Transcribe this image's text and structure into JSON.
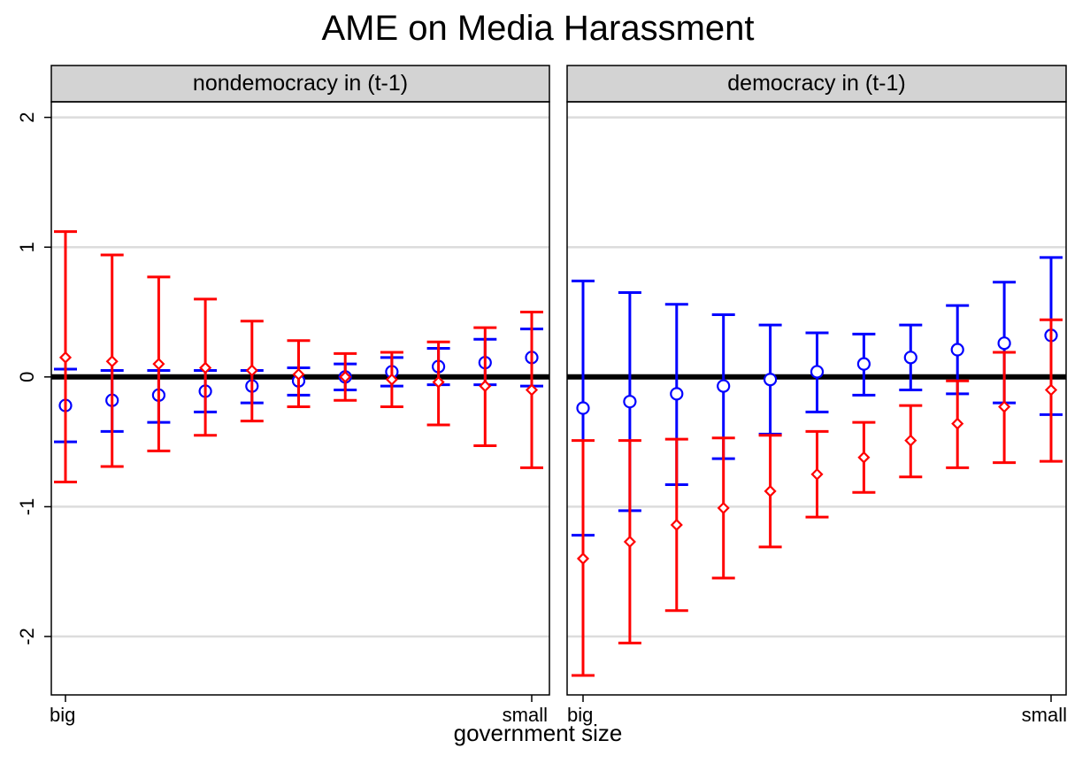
{
  "chart_data": {
    "type": "errorbar",
    "title": "AME on Media Harassment",
    "xlabel": "government size",
    "ylabel": "",
    "ylim": [
      -2.45,
      2.12
    ],
    "yticks": [
      -2,
      -1,
      0,
      1,
      2
    ],
    "ytick_labels": [
      "-2",
      "-1",
      "0",
      "1",
      "2"
    ],
    "x_tick_labels": [
      "big",
      "small"
    ],
    "reference_line": 0,
    "grid": "horizontal",
    "series_colors": {
      "blue": "#0000ff",
      "red": "#ff0000"
    },
    "panels": [
      {
        "label": "nondemocracy in (t-1)",
        "series": [
          {
            "marker": "circle",
            "color": "#0000ff",
            "estimate": [
              -0.22,
              -0.18,
              -0.14,
              -0.11,
              -0.07,
              -0.03,
              0.0,
              0.04,
              0.08,
              0.11,
              0.15
            ],
            "lower": [
              -0.5,
              -0.42,
              -0.35,
              -0.27,
              -0.2,
              -0.14,
              -0.1,
              -0.07,
              -0.06,
              -0.06,
              -0.07
            ],
            "upper": [
              0.06,
              0.05,
              0.05,
              0.05,
              0.05,
              0.07,
              0.1,
              0.15,
              0.22,
              0.29,
              0.37
            ]
          },
          {
            "marker": "diamond",
            "color": "#ff0000",
            "estimate": [
              0.15,
              0.12,
              0.1,
              0.07,
              0.05,
              0.02,
              0.0,
              -0.02,
              -0.04,
              -0.07,
              -0.1
            ],
            "lower": [
              -0.81,
              -0.69,
              -0.57,
              -0.45,
              -0.34,
              -0.23,
              -0.18,
              -0.23,
              -0.37,
              -0.53,
              -0.7
            ],
            "upper": [
              1.12,
              0.94,
              0.77,
              0.6,
              0.43,
              0.28,
              0.18,
              0.19,
              0.27,
              0.38,
              0.5
            ]
          }
        ]
      },
      {
        "label": "democracy in (t-1)",
        "series": [
          {
            "marker": "circle",
            "color": "#0000ff",
            "estimate": [
              -0.24,
              -0.19,
              -0.13,
              -0.07,
              -0.02,
              0.04,
              0.1,
              0.15,
              0.21,
              0.26,
              0.32
            ],
            "lower": [
              -1.22,
              -1.03,
              -0.83,
              -0.63,
              -0.44,
              -0.27,
              -0.14,
              -0.1,
              -0.13,
              -0.2,
              -0.29
            ],
            "upper": [
              0.74,
              0.65,
              0.56,
              0.48,
              0.4,
              0.34,
              0.33,
              0.4,
              0.55,
              0.73,
              0.92
            ]
          },
          {
            "marker": "diamond",
            "color": "#ff0000",
            "estimate": [
              -1.4,
              -1.27,
              -1.14,
              -1.01,
              -0.88,
              -0.75,
              -0.62,
              -0.49,
              -0.36,
              -0.23,
              -0.1
            ],
            "lower": [
              -2.3,
              -2.05,
              -1.8,
              -1.55,
              -1.31,
              -1.08,
              -0.89,
              -0.77,
              -0.7,
              -0.66,
              -0.65
            ],
            "upper": [
              -0.49,
              -0.49,
              -0.48,
              -0.47,
              -0.45,
              -0.42,
              -0.35,
              -0.22,
              -0.03,
              0.19,
              0.44
            ]
          }
        ]
      }
    ]
  }
}
